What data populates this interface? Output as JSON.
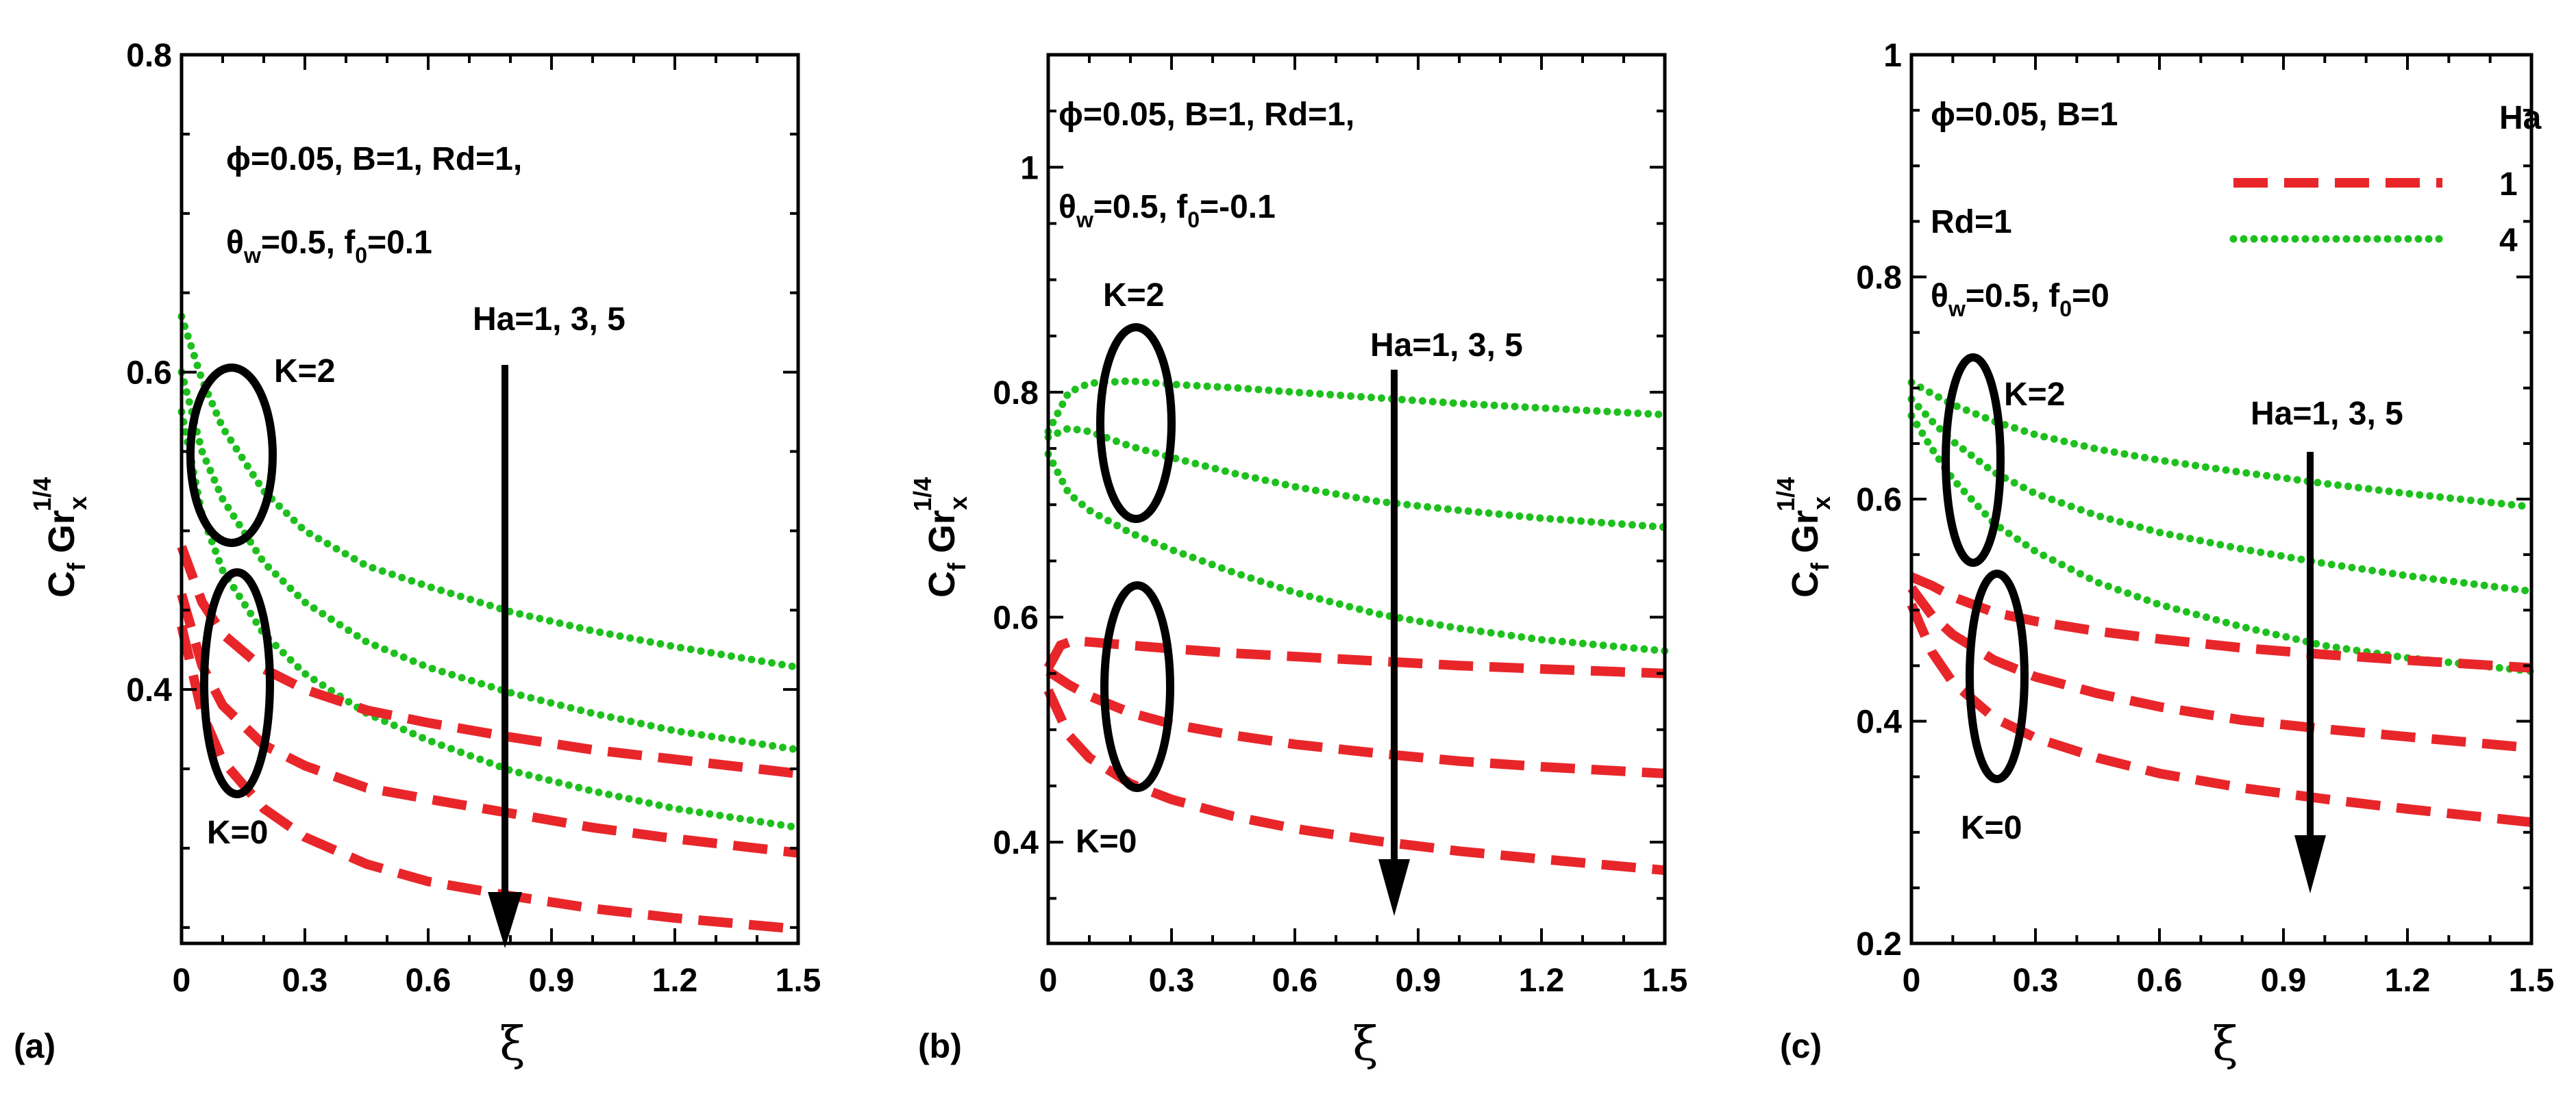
{
  "chart_data": [
    {
      "panel_label": "(a)",
      "type": "line",
      "xlabel": "ξ",
      "ylabel": {
        "main": "C",
        "sub_f": "f",
        "gr": "Gr",
        "sub_x": "x",
        "sup": "1/4"
      },
      "xlim": [
        0,
        1.5
      ],
      "ylim": [
        0.24,
        0.8
      ],
      "xticks": [
        "0",
        "0.3",
        "0.6",
        "0.9",
        "1.2",
        "1.5"
      ],
      "yticks": [
        {
          "v": 0.4,
          "label": "0.4"
        },
        {
          "v": 0.6,
          "label": "0.6"
        },
        {
          "v": 0.8,
          "label": "0.8"
        }
      ],
      "param_lines": [
        "ϕ=0.05, B=1, Rd=1,",
        "θw=0.5, f0=0.1"
      ],
      "annotations": {
        "k_top": "K=2",
        "k_bottom": "K=0",
        "ha": "Ha=1, 3, 5"
      },
      "series": [
        {
          "name": "K=2, Ha=1",
          "color": "#1ec01e",
          "style": "dotted",
          "x": [
            0,
            0.05,
            0.1,
            0.2,
            0.3,
            0.45,
            0.6,
            0.8,
            1.0,
            1.2,
            1.5
          ],
          "y": [
            0.635,
            0.595,
            0.565,
            0.525,
            0.5,
            0.478,
            0.465,
            0.449,
            0.437,
            0.427,
            0.414
          ]
        },
        {
          "name": "K=2, Ha=3",
          "color": "#1ec01e",
          "style": "dotted",
          "x": [
            0,
            0.05,
            0.1,
            0.2,
            0.3,
            0.45,
            0.6,
            0.8,
            1.0,
            1.2,
            1.5
          ],
          "y": [
            0.6,
            0.55,
            0.52,
            0.48,
            0.455,
            0.43,
            0.414,
            0.398,
            0.385,
            0.374,
            0.362
          ]
        },
        {
          "name": "K=2, Ha=5",
          "color": "#1ec01e",
          "style": "dotted",
          "x": [
            0,
            0.05,
            0.1,
            0.2,
            0.3,
            0.45,
            0.6,
            0.8,
            1.0,
            1.2,
            1.5
          ],
          "y": [
            0.575,
            0.51,
            0.475,
            0.435,
            0.41,
            0.385,
            0.368,
            0.349,
            0.336,
            0.325,
            0.313
          ]
        },
        {
          "name": "K=0, Ha=1",
          "color": "#e8262a",
          "style": "dashed",
          "x": [
            0,
            0.05,
            0.1,
            0.2,
            0.3,
            0.45,
            0.6,
            0.8,
            1.0,
            1.2,
            1.5
          ],
          "y": [
            0.49,
            0.455,
            0.435,
            0.413,
            0.4,
            0.387,
            0.379,
            0.37,
            0.362,
            0.356,
            0.347
          ]
        },
        {
          "name": "K=0, Ha=3",
          "color": "#e8262a",
          "style": "dashed",
          "x": [
            0,
            0.05,
            0.1,
            0.2,
            0.3,
            0.45,
            0.6,
            0.8,
            1.0,
            1.2,
            1.5
          ],
          "y": [
            0.46,
            0.415,
            0.39,
            0.365,
            0.352,
            0.338,
            0.331,
            0.322,
            0.313,
            0.306,
            0.297
          ]
        },
        {
          "name": "K=0, Ha=5",
          "color": "#e8262a",
          "style": "dashed",
          "x": [
            0,
            0.05,
            0.1,
            0.2,
            0.3,
            0.45,
            0.6,
            0.8,
            1.0,
            1.2,
            1.5
          ],
          "y": [
            0.44,
            0.385,
            0.355,
            0.325,
            0.307,
            0.29,
            0.279,
            0.27,
            0.262,
            0.256,
            0.249
          ]
        }
      ]
    },
    {
      "panel_label": "(b)",
      "type": "line",
      "xlabel": "ξ",
      "ylabel": {
        "main": "C",
        "sub_f": "f",
        "gr": "Gr",
        "sub_x": "x",
        "sup": "1/4"
      },
      "xlim": [
        0,
        1.5
      ],
      "ylim": [
        0.31,
        1.1
      ],
      "xticks": [
        "0",
        "0.3",
        "0.6",
        "0.9",
        "1.2",
        "1.5"
      ],
      "yticks": [
        {
          "v": 0.4,
          "label": "0.4"
        },
        {
          "v": 0.6,
          "label": "0.6"
        },
        {
          "v": 0.8,
          "label": "0.8"
        },
        {
          "v": 1.0,
          "label": "1"
        }
      ],
      "param_lines": [
        "ϕ=0.05, B=1, Rd=1,",
        "θw=0.5, f0=-0.1"
      ],
      "annotations": {
        "k_top": "K=2",
        "k_bottom": "K=0",
        "ha": "Ha=1, 3, 5"
      },
      "series": [
        {
          "name": "K=2, Ha=1",
          "color": "#1ec01e",
          "style": "dotted",
          "x": [
            0,
            0.05,
            0.1,
            0.2,
            0.3,
            0.45,
            0.6,
            0.8,
            1.0,
            1.2,
            1.5
          ],
          "y": [
            0.765,
            0.8,
            0.808,
            0.81,
            0.807,
            0.804,
            0.8,
            0.795,
            0.79,
            0.786,
            0.78
          ]
        },
        {
          "name": "K=2, Ha=3",
          "color": "#1ec01e",
          "style": "dotted",
          "x": [
            0,
            0.05,
            0.1,
            0.2,
            0.3,
            0.45,
            0.6,
            0.8,
            1.0,
            1.2,
            1.5
          ],
          "y": [
            0.76,
            0.768,
            0.765,
            0.752,
            0.742,
            0.728,
            0.716,
            0.703,
            0.695,
            0.688,
            0.68
          ]
        },
        {
          "name": "K=2, Ha=5",
          "color": "#1ec01e",
          "style": "dotted",
          "x": [
            0,
            0.05,
            0.1,
            0.2,
            0.3,
            0.45,
            0.6,
            0.8,
            1.0,
            1.2,
            1.5
          ],
          "y": [
            0.745,
            0.71,
            0.695,
            0.675,
            0.66,
            0.64,
            0.622,
            0.603,
            0.59,
            0.58,
            0.57
          ]
        },
        {
          "name": "K=0, Ha=1",
          "color": "#e8262a",
          "style": "dashed",
          "x": [
            0,
            0.03,
            0.06,
            0.1,
            0.2,
            0.3,
            0.45,
            0.6,
            0.8,
            1.0,
            1.2,
            1.5
          ],
          "y": [
            0.555,
            0.575,
            0.579,
            0.578,
            0.575,
            0.572,
            0.568,
            0.565,
            0.561,
            0.557,
            0.554,
            0.55
          ]
        },
        {
          "name": "K=0, Ha=3",
          "color": "#e8262a",
          "style": "dashed",
          "x": [
            0,
            0.05,
            0.1,
            0.2,
            0.3,
            0.45,
            0.6,
            0.8,
            1.0,
            1.2,
            1.5
          ],
          "y": [
            0.552,
            0.54,
            0.53,
            0.515,
            0.505,
            0.495,
            0.487,
            0.479,
            0.472,
            0.467,
            0.461
          ]
        },
        {
          "name": "K=0, Ha=5",
          "color": "#e8262a",
          "style": "dashed",
          "x": [
            0,
            0.05,
            0.1,
            0.2,
            0.3,
            0.45,
            0.6,
            0.8,
            1.0,
            1.2,
            1.5
          ],
          "y": [
            0.535,
            0.495,
            0.475,
            0.452,
            0.438,
            0.423,
            0.412,
            0.401,
            0.392,
            0.385,
            0.375
          ]
        }
      ]
    },
    {
      "panel_label": "(c)",
      "type": "line",
      "xlabel": "ξ",
      "ylabel": {
        "main": "C",
        "sub_f": "f",
        "gr": "Gr",
        "sub_x": "x",
        "sup": "1/4"
      },
      "xlim": [
        0,
        1.5
      ],
      "ylim": [
        0.2,
        1.0
      ],
      "xticks": [
        "0",
        "0.3",
        "0.6",
        "0.9",
        "1.2",
        "1.5"
      ],
      "yticks": [
        {
          "v": 0.2,
          "label": "0.2"
        },
        {
          "v": 0.4,
          "label": "0.4"
        },
        {
          "v": 0.6,
          "label": "0.6"
        },
        {
          "v": 0.8,
          "label": "0.8"
        },
        {
          "v": 1.0,
          "label": "1"
        }
      ],
      "param_lines": [
        "ϕ=0.05, B=1",
        "Rd=1",
        "θw=0.5, f0=0"
      ],
      "annotations": {
        "k_top": "K=2",
        "k_bottom": "K=0",
        "ha": "Ha=1, 3, 5"
      },
      "legend": {
        "title": "Ha",
        "entries": [
          {
            "label": "1",
            "color": "#e8262a",
            "style": "dashed"
          },
          {
            "label": "4",
            "color": "#1ec01e",
            "style": "dotted"
          }
        ]
      },
      "series": [
        {
          "name": "K=2, Ha=1",
          "color": "#1ec01e",
          "style": "dotted",
          "x": [
            0,
            0.05,
            0.1,
            0.2,
            0.3,
            0.45,
            0.6,
            0.8,
            1.0,
            1.2,
            1.5
          ],
          "y": [
            0.705,
            0.695,
            0.685,
            0.67,
            0.658,
            0.645,
            0.635,
            0.624,
            0.614,
            0.605,
            0.593
          ]
        },
        {
          "name": "K=2, Ha=3",
          "color": "#1ec01e",
          "style": "dotted",
          "x": [
            0,
            0.05,
            0.1,
            0.2,
            0.3,
            0.45,
            0.6,
            0.8,
            1.0,
            1.2,
            1.5
          ],
          "y": [
            0.69,
            0.67,
            0.652,
            0.624,
            0.605,
            0.585,
            0.57,
            0.555,
            0.542,
            0.531,
            0.517
          ]
        },
        {
          "name": "K=2, Ha=5",
          "color": "#1ec01e",
          "style": "dotted",
          "x": [
            0,
            0.05,
            0.1,
            0.2,
            0.3,
            0.45,
            0.6,
            0.8,
            1.0,
            1.2,
            1.5
          ],
          "y": [
            0.675,
            0.645,
            0.618,
            0.578,
            0.553,
            0.525,
            0.505,
            0.485,
            0.468,
            0.457,
            0.445
          ]
        },
        {
          "name": "K=0, Ha=1",
          "color": "#e8262a",
          "style": "dashed",
          "x": [
            0,
            0.05,
            0.1,
            0.2,
            0.3,
            0.45,
            0.6,
            0.8,
            1.0,
            1.2,
            1.5
          ],
          "y": [
            0.53,
            0.522,
            0.512,
            0.498,
            0.49,
            0.481,
            0.474,
            0.466,
            0.46,
            0.455,
            0.448
          ]
        },
        {
          "name": "K=0, Ha=3",
          "color": "#e8262a",
          "style": "dashed",
          "x": [
            0,
            0.05,
            0.1,
            0.2,
            0.3,
            0.45,
            0.6,
            0.8,
            1.0,
            1.2,
            1.5
          ],
          "y": [
            0.52,
            0.495,
            0.478,
            0.455,
            0.44,
            0.425,
            0.413,
            0.401,
            0.393,
            0.386,
            0.376
          ]
        },
        {
          "name": "K=0, Ha=5",
          "color": "#e8262a",
          "style": "dashed",
          "x": [
            0,
            0.05,
            0.1,
            0.2,
            0.3,
            0.45,
            0.6,
            0.8,
            1.0,
            1.2,
            1.5
          ],
          "y": [
            0.505,
            0.462,
            0.435,
            0.403,
            0.385,
            0.367,
            0.353,
            0.34,
            0.33,
            0.321,
            0.309
          ]
        }
      ]
    }
  ]
}
